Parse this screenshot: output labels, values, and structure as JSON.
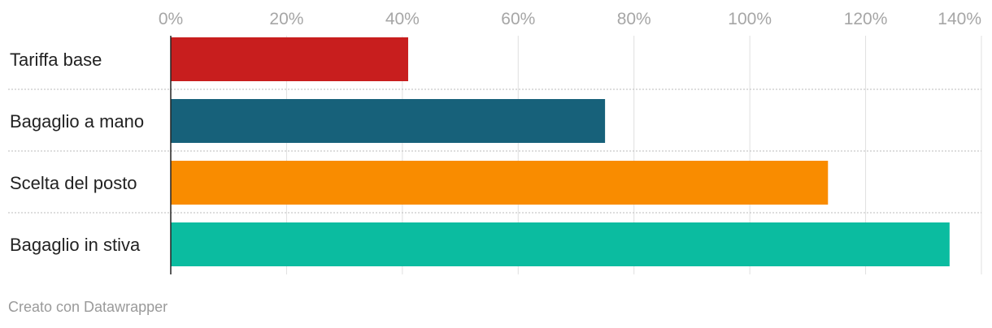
{
  "chart_data": {
    "type": "bar",
    "orientation": "horizontal",
    "categories": [
      "Tariffa base",
      "Bagaglio a mano",
      "Scelta del posto",
      "Bagaglio in stiva"
    ],
    "values": [
      41,
      75,
      113.5,
      134.5
    ],
    "colors": [
      "#c81e1e",
      "#17617a",
      "#f98c00",
      "#0bbca0"
    ],
    "xlim": [
      0,
      140
    ],
    "xticks": [
      0,
      20,
      40,
      60,
      80,
      100,
      120,
      140
    ],
    "xtick_labels": [
      "0%",
      "20%",
      "40%",
      "60%",
      "80%",
      "100%",
      "120%",
      "140%"
    ],
    "axis_position": "top",
    "grid": true
  },
  "footer": {
    "credit": "Creato con Datawrapper"
  }
}
